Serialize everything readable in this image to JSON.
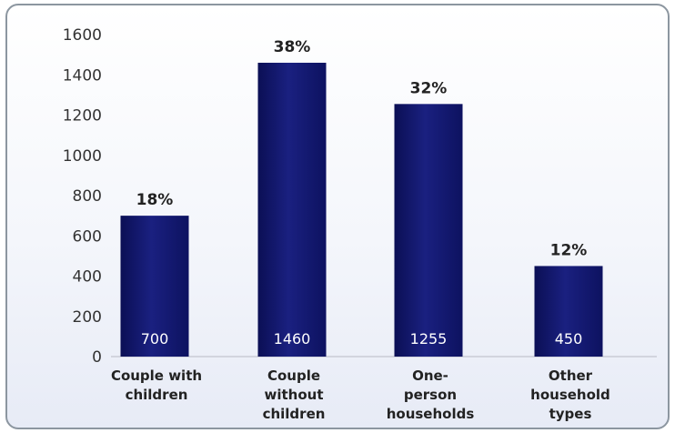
{
  "chart_data": {
    "type": "bar",
    "title": "",
    "xlabel": "",
    "ylabel": "",
    "ylim": [
      0,
      1600
    ],
    "yticks": [
      0,
      200,
      400,
      600,
      800,
      1000,
      1200,
      1400,
      1600
    ],
    "grid": false,
    "legend": "none",
    "categories": [
      [
        "Couple with",
        "children"
      ],
      [
        "Couple",
        "without",
        "children"
      ],
      [
        "One-",
        "person",
        "households"
      ],
      [
        "Other",
        "household",
        "types"
      ]
    ],
    "values": [
      700,
      1460,
      1255,
      450
    ],
    "value_labels": [
      "700",
      "1460",
      "1255",
      "450"
    ],
    "percent_labels": [
      "18%",
      "38%",
      "32%",
      "12%"
    ],
    "bar_color": "#10146a",
    "bar_highlight": "#2a3296"
  }
}
